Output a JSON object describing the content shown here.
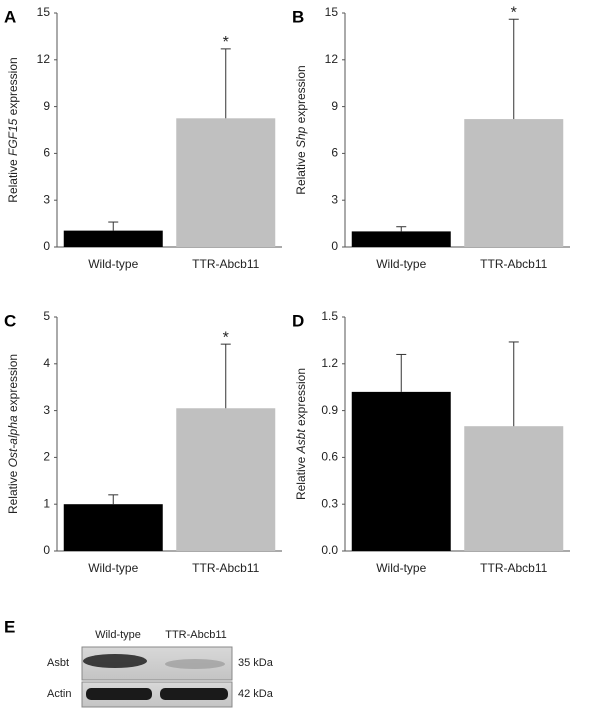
{
  "chart_data": [
    {
      "type": "bar",
      "panel_label": "A",
      "ylabel": [
        "Relative ",
        "FGF15",
        " expression"
      ],
      "categories": [
        "Wild-type",
        "TTR-Abcb11"
      ],
      "values": [
        1.05,
        8.25
      ],
      "errors": [
        0.55,
        4.45
      ],
      "colors": [
        "#000000",
        "#c0c0c0"
      ],
      "ylim": [
        0,
        15
      ],
      "yticks": [
        0,
        3,
        6,
        9,
        12,
        15
      ],
      "annotations": [
        {
          "category": "TTR-Abcb11",
          "text": "*"
        }
      ]
    },
    {
      "type": "bar",
      "panel_label": "B",
      "ylabel": [
        "Relative ",
        "Shp",
        " expression"
      ],
      "categories": [
        "Wild-type",
        "TTR-Abcb11"
      ],
      "values": [
        1.0,
        8.2
      ],
      "errors": [
        0.3,
        6.4
      ],
      "colors": [
        "#000000",
        "#c0c0c0"
      ],
      "ylim": [
        0,
        15
      ],
      "yticks": [
        0,
        3,
        6,
        9,
        12,
        15
      ],
      "annotations": [
        {
          "category": "TTR-Abcb11",
          "text": "*"
        }
      ]
    },
    {
      "type": "bar",
      "panel_label": "C",
      "ylabel": [
        "Relative ",
        "Ost-alpha",
        " expression"
      ],
      "categories": [
        "Wild-type",
        "TTR-Abcb11"
      ],
      "values": [
        1.0,
        3.05
      ],
      "errors": [
        0.2,
        1.37
      ],
      "colors": [
        "#000000",
        "#c0c0c0"
      ],
      "ylim": [
        0,
        5
      ],
      "yticks": [
        0,
        1,
        2,
        3,
        4,
        5
      ],
      "annotations": [
        {
          "category": "TTR-Abcb11",
          "text": "*"
        }
      ]
    },
    {
      "type": "bar",
      "panel_label": "D",
      "ylabel": [
        "Relative ",
        "Asbt",
        " expression"
      ],
      "categories": [
        "Wild-type",
        "TTR-Abcb11"
      ],
      "values": [
        1.02,
        0.8
      ],
      "errors": [
        0.24,
        0.54
      ],
      "colors": [
        "#000000",
        "#c0c0c0"
      ],
      "ylim": [
        0,
        1.5
      ],
      "yticks": [
        {
          "value": 0,
          "label": "0.0"
        },
        0.3,
        0.6,
        0.9,
        1.2,
        1.5
      ]
    }
  ],
  "blot": {
    "panel_label": "E",
    "lanes": [
      "Wild-type",
      "TTR-Abcb11"
    ],
    "rows": [
      "Asbt",
      "Actin"
    ],
    "sizes": [
      "35 kDa",
      "42 kDa"
    ]
  }
}
